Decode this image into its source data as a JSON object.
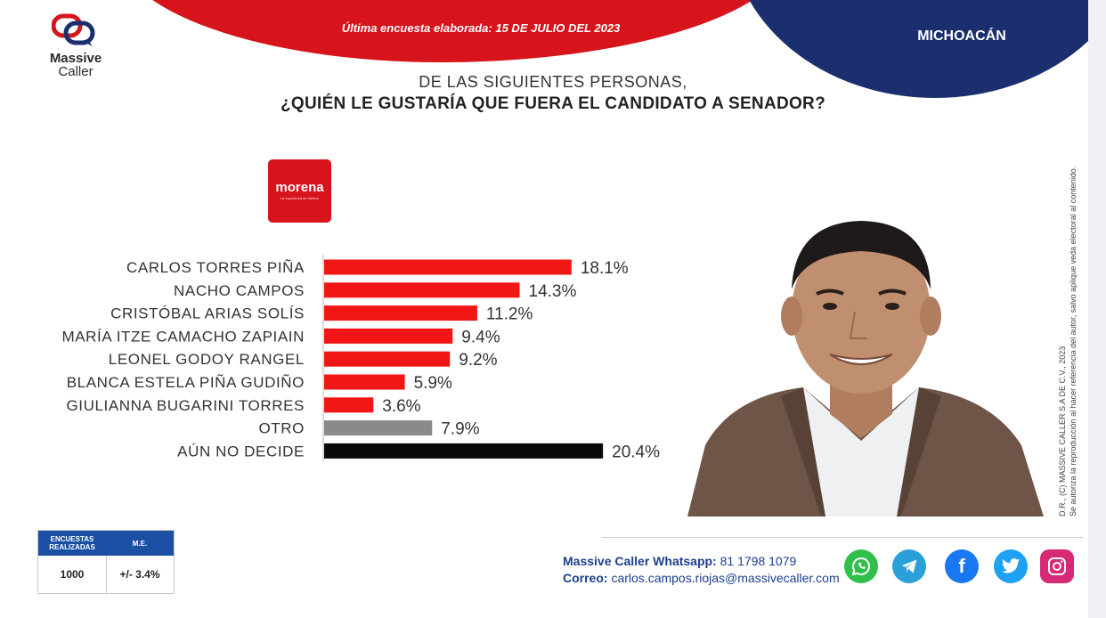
{
  "header": {
    "date_line": "Última encuesta elaborada:  15 DE JULIO DEL 2023",
    "state": "MICHOACÁN",
    "logo_line1": "Massive",
    "logo_line2": "Caller"
  },
  "question": {
    "line1": "DE LAS SIGUIENTES  PERSONAS,",
    "line2": "¿QUIÉN LE GUSTARÍA QUE FUERA EL CANDIDATO  A SENADOR?"
  },
  "party": {
    "name": "morena",
    "tagline": "La esperanza de México"
  },
  "chart_data": {
    "type": "bar",
    "orientation": "horizontal",
    "categories": [
      "CARLOS TORRES PIÑA",
      "NACHO CAMPOS",
      "CRISTÓBAL ARIAS SOLÍS",
      "MARÍA ITZE CAMACHO ZAPIAIN",
      "LEONEL GODOY RANGEL",
      "BLANCA ESTELA PIÑA GUDIÑO",
      "GIULIANNA BUGARINI TORRES",
      "OTRO",
      "AÚN NO DECIDE"
    ],
    "values": [
      18.1,
      14.3,
      11.2,
      9.4,
      9.2,
      5.9,
      3.6,
      7.9,
      20.4
    ],
    "value_labels": [
      "18.1%",
      "14.3%",
      "11.2%",
      "9.4%",
      "9.2%",
      "5.9%",
      "3.6%",
      "7.9%",
      "20.4%"
    ],
    "colors": [
      "#f21515",
      "#f21515",
      "#f21515",
      "#f21515",
      "#f21515",
      "#f21515",
      "#f21515",
      "#8a8a8a",
      "#0a0a0a"
    ],
    "grid": false,
    "legend": "none"
  },
  "stats": {
    "col1_header": "ENCUESTAS REALIZADAS",
    "col2_header": "M.E.",
    "col1_value": "1000",
    "col2_value": "+/- 3.4%"
  },
  "contact": {
    "whatsapp_label": "Massive Caller Whatsapp:",
    "whatsapp_number": "81 1798 1079",
    "email_label": "Correo:",
    "email": "carlos.campos.riojas@massivecaller.com"
  },
  "social_icons": [
    "whatsapp-icon",
    "telegram-icon",
    "facebook-icon",
    "twitter-icon",
    "instagram-icon"
  ],
  "copyright": {
    "line1": "D.R., (C) MASSIVE CALLER S.A DE C.V., 2023",
    "line2": "Se autoriza la reproducción al hacer referencia del autor, salvo aplique veda electoral al contenido."
  },
  "colors": {
    "brand_red": "#d7141c",
    "brand_blue": "#1b2f6e",
    "table_blue": "#1b4fa3"
  }
}
